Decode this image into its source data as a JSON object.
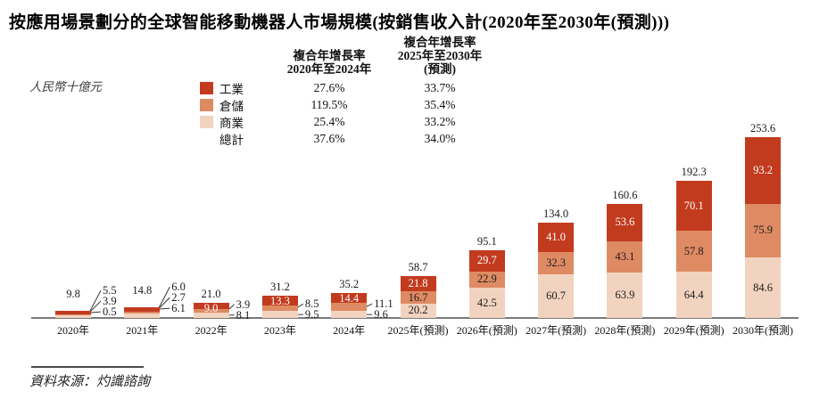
{
  "title": "按應用場景劃分的全球智能移動機器人市場規模(按銷售收入計(2020年至2030年(預測)))",
  "unit_label": "人民幣十億元",
  "source": "資料來源：灼識諮詢",
  "colors": {
    "industrial": "#c23b1f",
    "warehousing": "#de8a62",
    "commercial": "#f2d3c0",
    "axis": "#7a7a7a"
  },
  "cagr_table": {
    "col1_header": {
      "line1": "複合年增長率",
      "line2": "2020年至2024年"
    },
    "col2_header": {
      "line1": "複合年增長率",
      "line2": "2025年至2030年",
      "line3": "(預測)"
    },
    "rows": [
      {
        "id": "industrial",
        "label": "工業",
        "swatch": "#c23b1f",
        "cagr_2020_2024": "27.6%",
        "cagr_2025_2030": "33.7%"
      },
      {
        "id": "warehousing",
        "label": "倉儲",
        "swatch": "#de8a62",
        "cagr_2020_2024": "119.5%",
        "cagr_2025_2030": "35.4%"
      },
      {
        "id": "commercial",
        "label": "商業",
        "swatch": "#f2d3c0",
        "cagr_2020_2024": "25.4%",
        "cagr_2025_2030": "33.2%"
      },
      {
        "id": "total",
        "label": "總計",
        "swatch": null,
        "cagr_2020_2024": "37.6%",
        "cagr_2025_2030": "34.0%"
      }
    ]
  },
  "chart_data": {
    "type": "bar",
    "stacked": true,
    "unit": "人民幣十億元 (RMB billions)",
    "grid": false,
    "ylim": [
      0,
      260
    ],
    "legend_position": "top-left",
    "stack_order_bottom_to_top": [
      "commercial",
      "warehousing",
      "industrial"
    ],
    "categories": [
      "2020年",
      "2021年",
      "2022年",
      "2023年",
      "2024年",
      "2025年(預測)",
      "2026年(預測)",
      "2027年(預測)",
      "2028年(預測)",
      "2029年(預測)",
      "2030年(預測)"
    ],
    "series": [
      {
        "id": "industrial",
        "name": "工業",
        "color": "#c23b1f",
        "values": [
          5.5,
          6.0,
          9.0,
          13.3,
          14.4,
          21.8,
          29.7,
          41.0,
          53.6,
          70.1,
          93.2
        ]
      },
      {
        "id": "warehousing",
        "name": "倉儲",
        "color": "#de8a62",
        "values": [
          0.5,
          2.7,
          3.9,
          8.5,
          11.1,
          16.7,
          22.9,
          32.3,
          43.1,
          57.8,
          75.9
        ]
      },
      {
        "id": "commercial",
        "name": "商業",
        "color": "#f2d3c0",
        "values": [
          3.9,
          6.1,
          8.1,
          9.5,
          9.6,
          20.2,
          42.5,
          60.7,
          63.9,
          64.4,
          84.6
        ]
      }
    ],
    "totals": [
      9.8,
      14.8,
      21.0,
      31.2,
      35.2,
      58.7,
      95.1,
      134.0,
      160.6,
      192.3,
      253.6
    ]
  }
}
